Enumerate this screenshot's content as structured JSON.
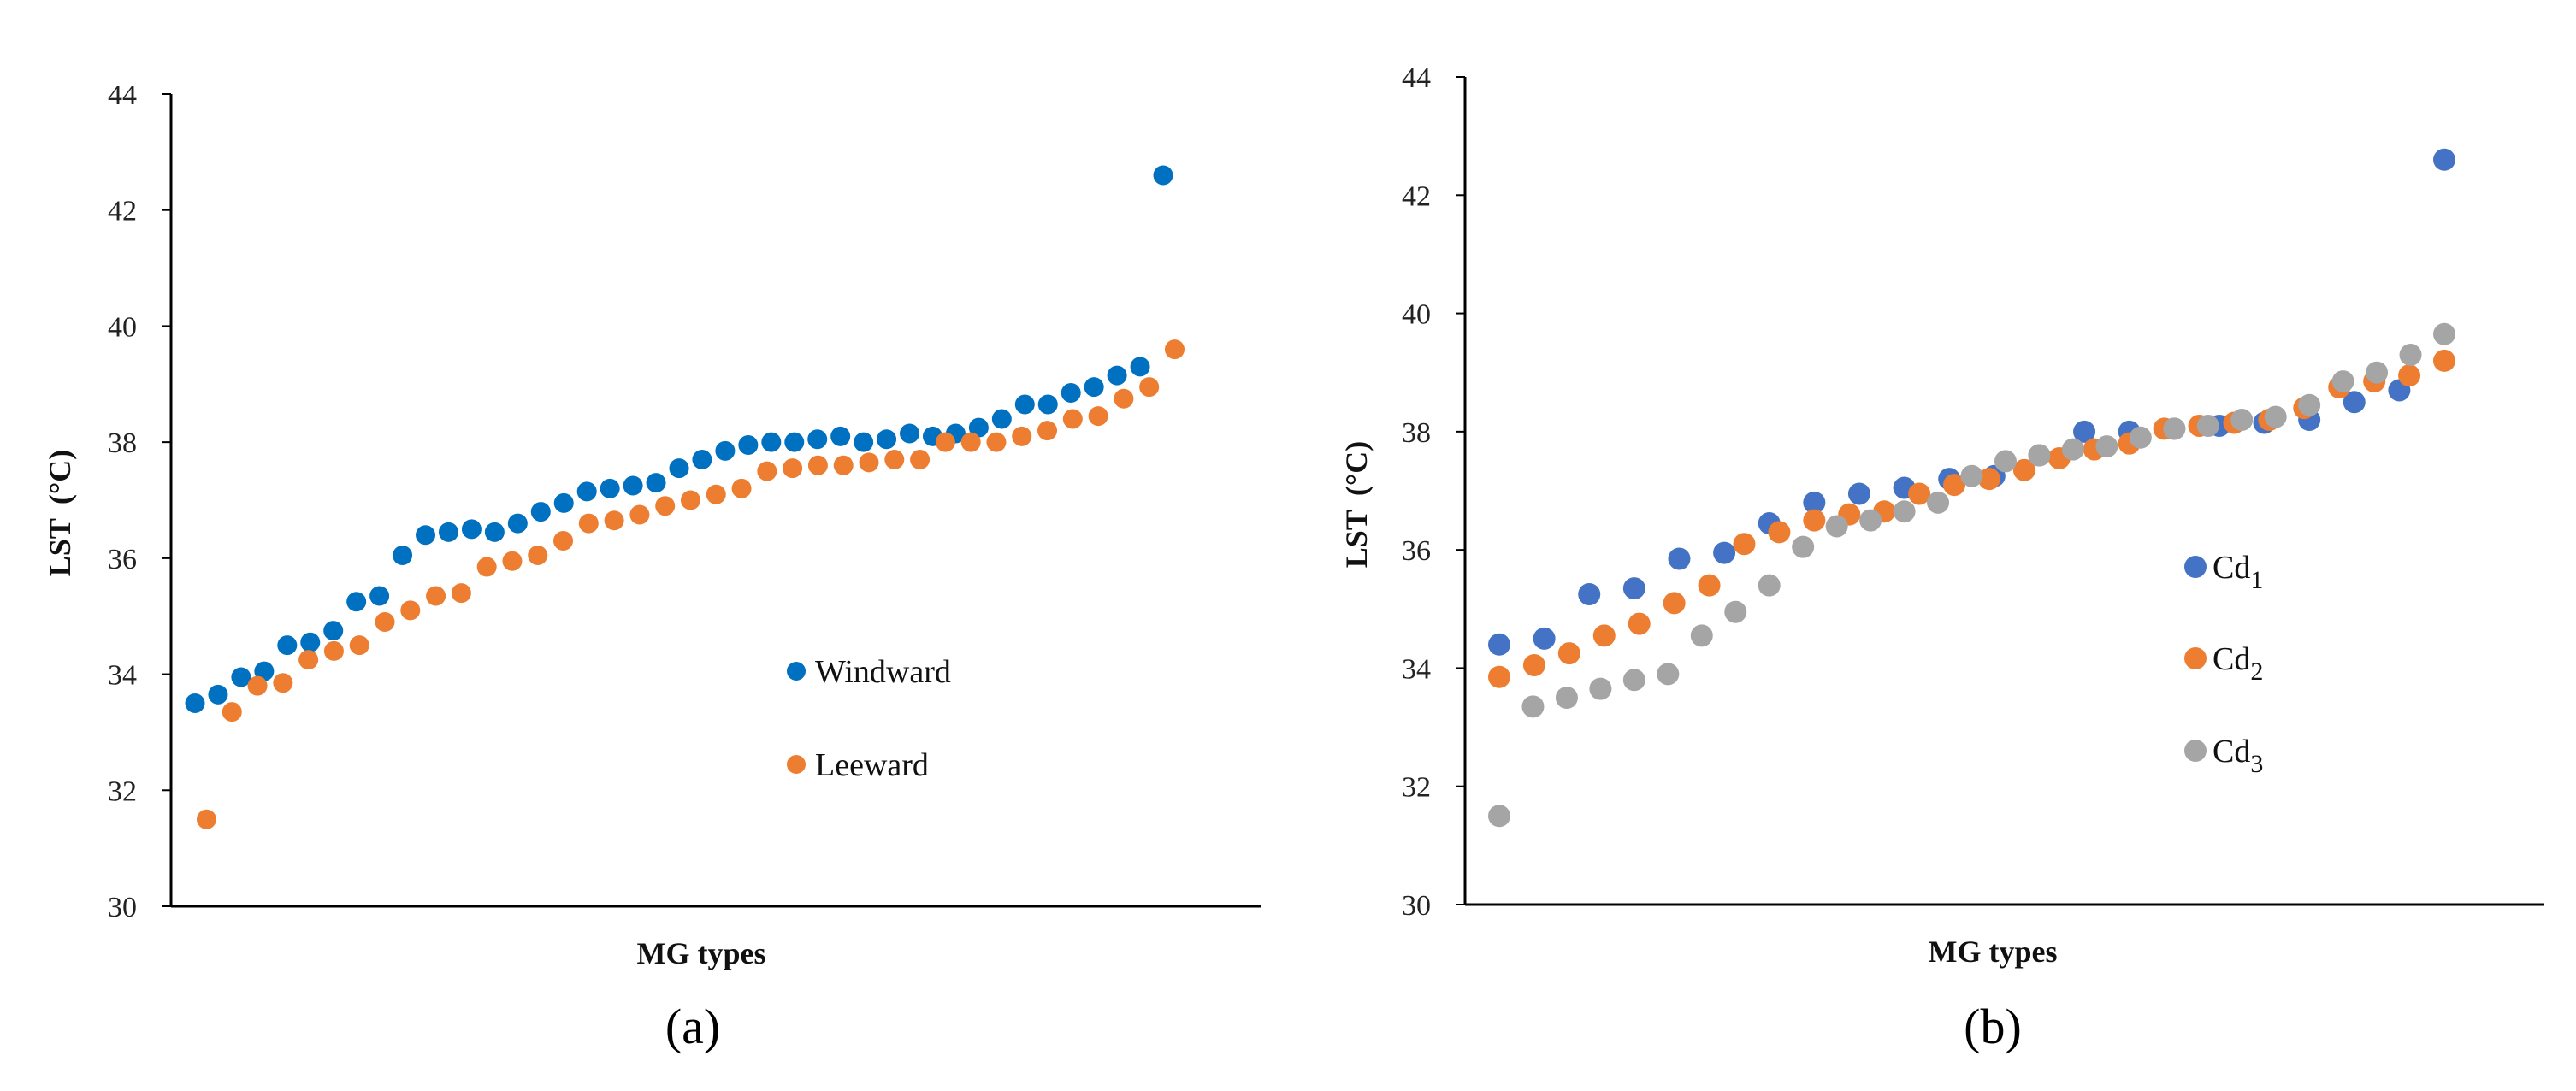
{
  "colors": {
    "windward": "#0070C0",
    "leeward": "#ED7D31",
    "cd1": "#4472C4",
    "cd2": "#ED7D31",
    "cd3": "#A5A5A5"
  },
  "chart_data": [
    {
      "type": "scatter",
      "caption": "(a)",
      "xlabel": "MG types",
      "ylabel": "LST",
      "ylabel_unit": "(°C)",
      "ylim": [
        30,
        44
      ],
      "yticks": [
        "30",
        "32",
        "34",
        "36",
        "38",
        "40",
        "42",
        "44"
      ],
      "legend_position": "lower-right",
      "series": [
        {
          "name": "Windward",
          "label": "Windward",
          "color_key": "windward",
          "values": [
            33.5,
            33.65,
            33.95,
            34.05,
            34.5,
            34.55,
            34.75,
            35.25,
            35.35,
            36.05,
            36.4,
            36.45,
            36.5,
            36.45,
            36.6,
            36.8,
            36.95,
            37.15,
            37.2,
            37.25,
            37.3,
            37.55,
            37.7,
            37.85,
            37.95,
            38.0,
            38.0,
            38.05,
            38.1,
            38.0,
            38.05,
            38.15,
            38.1,
            38.15,
            38.25,
            38.4,
            38.65,
            38.65,
            38.85,
            38.95,
            39.15,
            39.3,
            42.6
          ]
        },
        {
          "name": "Leeward",
          "label": "Leeward",
          "color_key": "leeward",
          "values": [
            31.5,
            33.35,
            33.8,
            33.85,
            34.25,
            34.4,
            34.5,
            34.9,
            35.1,
            35.35,
            35.4,
            35.85,
            35.95,
            36.05,
            36.3,
            36.6,
            36.65,
            36.75,
            36.9,
            37.0,
            37.1,
            37.2,
            37.5,
            37.55,
            37.6,
            37.6,
            37.65,
            37.7,
            37.7,
            38.0,
            38.0,
            38.0,
            38.1,
            38.2,
            38.4,
            38.45,
            38.75,
            38.95,
            39.6
          ]
        }
      ]
    },
    {
      "type": "scatter",
      "caption": "(b)",
      "xlabel": "MG types",
      "ylabel": "LST",
      "ylabel_unit": "(°C)",
      "ylim": [
        30,
        44
      ],
      "yticks": [
        "30",
        "32",
        "34",
        "36",
        "38",
        "40",
        "42",
        "44"
      ],
      "legend_position": "right",
      "series": [
        {
          "name": "Cd1",
          "label": "Cd",
          "sub": "1",
          "color_key": "cd1",
          "values": [
            34.4,
            34.5,
            35.25,
            35.35,
            35.85,
            35.95,
            36.45,
            36.8,
            36.95,
            37.05,
            37.2,
            37.25,
            37.6,
            38.0,
            38.0,
            38.05,
            38.1,
            38.15,
            38.2,
            38.5,
            38.7,
            42.6
          ]
        },
        {
          "name": "Cd2",
          "label": "Cd",
          "sub": "2",
          "color_key": "cd2",
          "values": [
            33.85,
            34.05,
            34.25,
            34.55,
            34.75,
            35.1,
            35.4,
            36.1,
            36.3,
            36.5,
            36.6,
            36.65,
            36.95,
            37.1,
            37.2,
            37.35,
            37.55,
            37.7,
            37.8,
            38.05,
            38.1,
            38.15,
            38.2,
            38.4,
            38.75,
            38.85,
            38.95,
            39.2
          ]
        },
        {
          "name": "Cd3",
          "label": "Cd",
          "sub": "3",
          "color_key": "cd3",
          "values": [
            31.5,
            33.35,
            33.5,
            33.65,
            33.8,
            33.9,
            34.55,
            34.95,
            35.4,
            36.05,
            36.4,
            36.5,
            36.65,
            36.8,
            37.25,
            37.5,
            37.6,
            37.7,
            37.75,
            37.9,
            38.05,
            38.1,
            38.2,
            38.25,
            38.45,
            38.85,
            39.0,
            39.3,
            39.65
          ]
        }
      ]
    }
  ]
}
